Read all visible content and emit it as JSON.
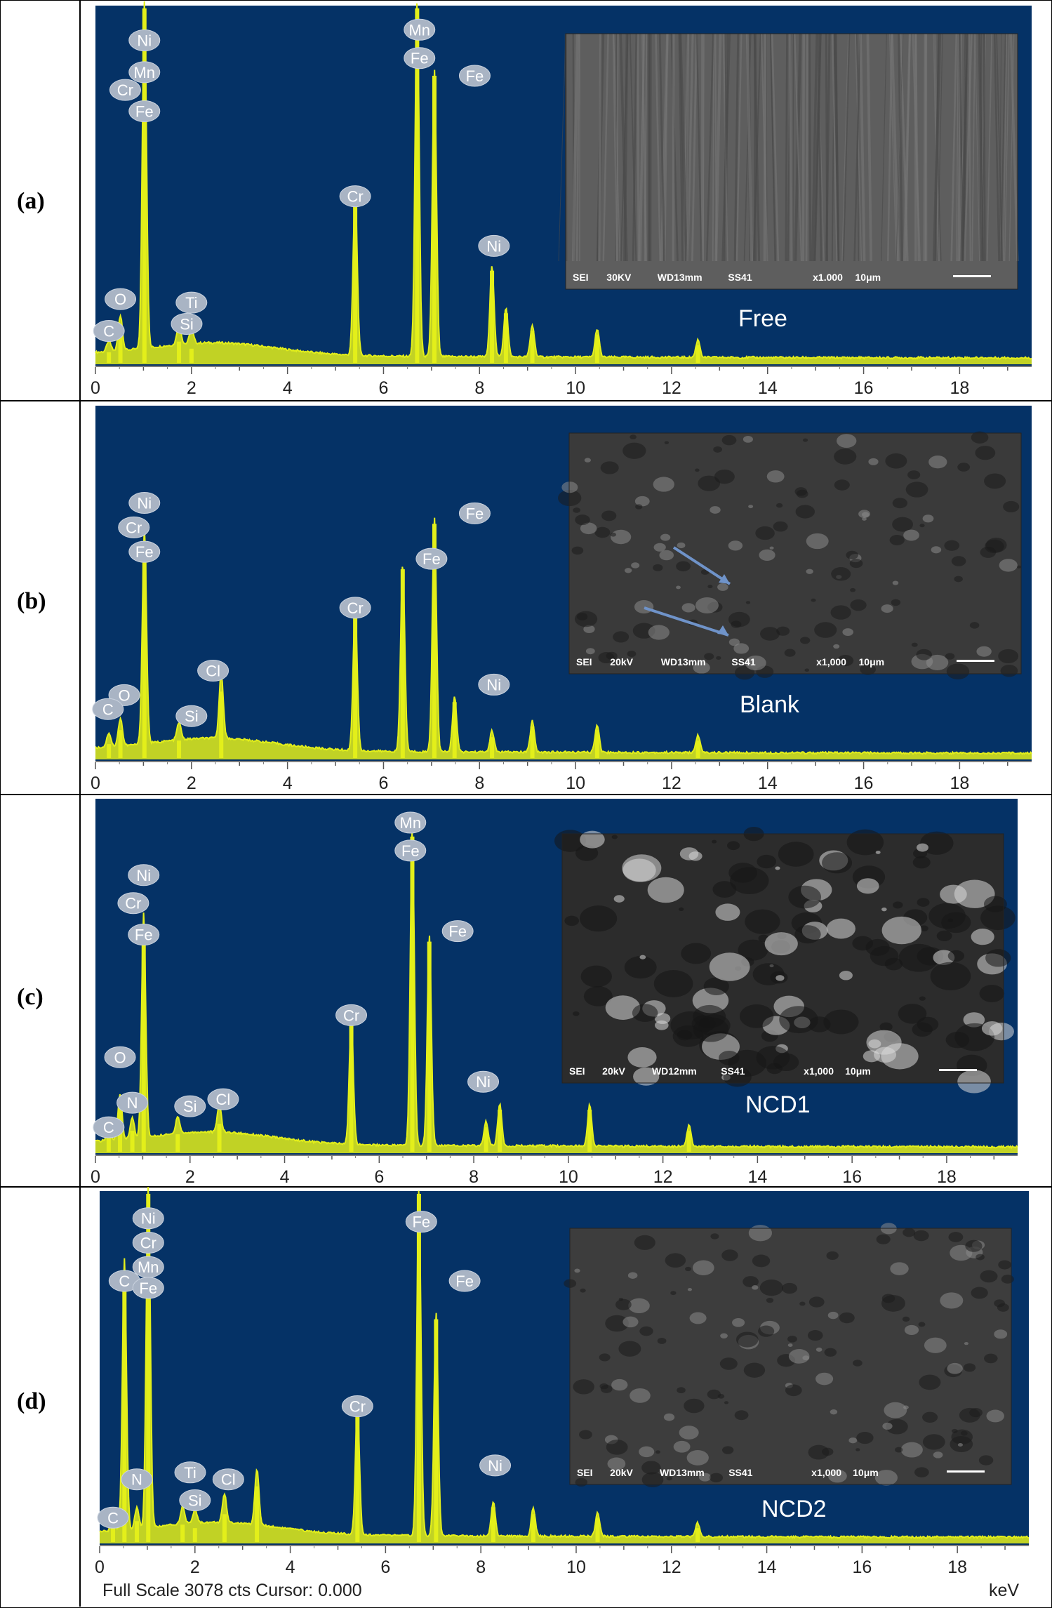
{
  "colors": {
    "background": "#053266",
    "spectrum": "#e3ef1a",
    "peak_label_bg": "#a9b4c4"
  },
  "footer": {
    "full_scale": "Full Scale 3078 cts Cursor: 0.000",
    "unit": "keV"
  },
  "chart_data": [
    {
      "type": "line",
      "panel_label": "(a)",
      "inset_title": "Free",
      "inset_info": [
        "SEI",
        "30KV",
        "WD13mm",
        "SS41",
        "x1.000",
        "10μm"
      ],
      "xlim": [
        0,
        19.5
      ],
      "x_ticks": [
        "0",
        "2",
        "4",
        "6",
        "8",
        "10",
        "12",
        "14",
        "16",
        "18"
      ],
      "peaks": [
        {
          "label": "C",
          "x": 0.28,
          "height": 0.03
        },
        {
          "label": "O",
          "x": 0.52,
          "height": 0.1
        },
        {
          "label": "Ni",
          "x": 1.02,
          "height": 1.0
        },
        {
          "label": "Si",
          "x": 1.74,
          "height": 0.06
        },
        {
          "label": "Ti",
          "x": 2.0,
          "height": 0.04
        },
        {
          "label": "Cr",
          "x": 5.41,
          "height": 0.46
        },
        {
          "label": "Mn",
          "x": 6.7,
          "height": 1.0
        },
        {
          "label": "Fe",
          "x": 7.06,
          "height": 0.81
        },
        {
          "label": "Ni",
          "x": 8.26,
          "height": 0.26
        },
        {
          "label": "",
          "x": 8.55,
          "height": 0.14
        },
        {
          "label": "",
          "x": 9.1,
          "height": 0.09
        },
        {
          "label": "",
          "x": 10.45,
          "height": 0.08
        },
        {
          "label": "",
          "x": 12.55,
          "height": 0.05
        }
      ],
      "labels": [
        {
          "text": "Ni",
          "x": 1.02,
          "level": 0.91
        },
        {
          "text": "Mn",
          "x": 1.02,
          "level": 0.82
        },
        {
          "text": "Cr",
          "x": 0.62,
          "level": 0.77
        },
        {
          "text": "Fe",
          "x": 1.02,
          "level": 0.71
        },
        {
          "text": "O",
          "x": 0.52,
          "level": 0.18
        },
        {
          "text": "C",
          "x": 0.28,
          "level": 0.09
        },
        {
          "text": "Ti",
          "x": 2.0,
          "level": 0.17
        },
        {
          "text": "Si",
          "x": 1.9,
          "level": 0.11
        },
        {
          "text": "Cr",
          "x": 5.41,
          "level": 0.47
        },
        {
          "text": "Mn",
          "x": 6.75,
          "level": 0.94
        },
        {
          "text": "Fe",
          "x": 6.75,
          "level": 0.86
        },
        {
          "text": "Fe",
          "x": 7.9,
          "level": 0.81
        },
        {
          "text": "Ni",
          "x": 8.3,
          "level": 0.33
        }
      ]
    },
    {
      "type": "line",
      "panel_label": "(b)",
      "inset_title": "Blank",
      "inset_info": [
        "SEI",
        "20kV",
        "WD13mm",
        "SS41",
        "x1,000",
        "10μm"
      ],
      "xlim": [
        0,
        19.5
      ],
      "x_ticks": [
        "0",
        "2",
        "4",
        "6",
        "8",
        "10",
        "12",
        "14",
        "16",
        "18"
      ],
      "peaks": [
        {
          "label": "C",
          "x": 0.28,
          "height": 0.04
        },
        {
          "label": "O",
          "x": 0.52,
          "height": 0.08
        },
        {
          "label": "Fe",
          "x": 1.02,
          "height": 0.62
        },
        {
          "label": "Si",
          "x": 1.74,
          "height": 0.05
        },
        {
          "label": "Cl",
          "x": 2.62,
          "height": 0.19
        },
        {
          "label": "Cr",
          "x": 5.41,
          "height": 0.41
        },
        {
          "label": "Fe",
          "x": 6.4,
          "height": 0.54
        },
        {
          "label": "Fe",
          "x": 7.06,
          "height": 0.67
        },
        {
          "label": "Ni",
          "x": 7.48,
          "height": 0.16
        },
        {
          "label": "",
          "x": 8.26,
          "height": 0.06
        },
        {
          "label": "",
          "x": 9.1,
          "height": 0.09
        },
        {
          "label": "",
          "x": 10.45,
          "height": 0.08
        },
        {
          "label": "",
          "x": 12.55,
          "height": 0.05
        }
      ],
      "labels": [
        {
          "text": "Ni",
          "x": 1.02,
          "level": 0.73
        },
        {
          "text": "Cr",
          "x": 0.8,
          "level": 0.66
        },
        {
          "text": "Fe",
          "x": 1.02,
          "level": 0.59
        },
        {
          "text": "O",
          "x": 0.6,
          "level": 0.18
        },
        {
          "text": "C",
          "x": 0.26,
          "level": 0.14
        },
        {
          "text": "Si",
          "x": 2.0,
          "level": 0.12
        },
        {
          "text": "Cl",
          "x": 2.45,
          "level": 0.25
        },
        {
          "text": "Cr",
          "x": 5.41,
          "level": 0.43
        },
        {
          "text": "Fe",
          "x": 7.0,
          "level": 0.57
        },
        {
          "text": "Fe",
          "x": 7.9,
          "level": 0.7
        },
        {
          "text": "Ni",
          "x": 8.3,
          "level": 0.21
        }
      ]
    },
    {
      "type": "line",
      "panel_label": "(c)",
      "inset_title": "NCD1",
      "inset_info": [
        "SEI",
        "20kV",
        "WD12mm",
        "SS41",
        "x1,000",
        "10μm"
      ],
      "xlim": [
        0,
        19.5
      ],
      "x_ticks": [
        "0",
        "2",
        "4",
        "6",
        "8",
        "10",
        "12",
        "14",
        "16",
        "18"
      ],
      "peaks": [
        {
          "label": "C",
          "x": 0.28,
          "height": 0.04
        },
        {
          "label": "O",
          "x": 0.52,
          "height": 0.13
        },
        {
          "label": "N",
          "x": 0.78,
          "height": 0.06
        },
        {
          "label": "Fe",
          "x": 1.02,
          "height": 0.64
        },
        {
          "label": "Si",
          "x": 1.74,
          "height": 0.05
        },
        {
          "label": "Cl",
          "x": 2.62,
          "height": 0.08
        },
        {
          "label": "Cr",
          "x": 5.41,
          "height": 0.36
        },
        {
          "label": "Mn",
          "x": 6.7,
          "height": 0.9
        },
        {
          "label": "Fe",
          "x": 7.06,
          "height": 0.6
        },
        {
          "label": "Ni",
          "x": 8.26,
          "height": 0.07
        },
        {
          "label": "",
          "x": 8.55,
          "height": 0.12
        },
        {
          "label": "",
          "x": 10.45,
          "height": 0.12
        },
        {
          "label": "",
          "x": 12.55,
          "height": 0.06
        }
      ],
      "labels": [
        {
          "text": "Ni",
          "x": 1.02,
          "level": 0.79
        },
        {
          "text": "Cr",
          "x": 0.8,
          "level": 0.71
        },
        {
          "text": "Fe",
          "x": 1.02,
          "level": 0.62
        },
        {
          "text": "O",
          "x": 0.52,
          "level": 0.27
        },
        {
          "text": "N",
          "x": 0.78,
          "level": 0.14
        },
        {
          "text": "C",
          "x": 0.28,
          "level": 0.07
        },
        {
          "text": "Si",
          "x": 2.0,
          "level": 0.13
        },
        {
          "text": "Cl",
          "x": 2.7,
          "level": 0.15
        },
        {
          "text": "Cr",
          "x": 5.41,
          "level": 0.39
        },
        {
          "text": "Mn",
          "x": 6.66,
          "level": 0.94
        },
        {
          "text": "Fe",
          "x": 6.66,
          "level": 0.86
        },
        {
          "text": "Fe",
          "x": 7.66,
          "level": 0.63
        },
        {
          "text": "Ni",
          "x": 8.2,
          "level": 0.2
        }
      ]
    },
    {
      "type": "line",
      "panel_label": "(d)",
      "inset_title": "NCD2",
      "inset_info": [
        "SEI",
        "20kV",
        "WD13mm",
        "SS41",
        "x1,000",
        "10μm"
      ],
      "xlim": [
        0,
        19.5
      ],
      "x_ticks": [
        "0",
        "2",
        "4",
        "6",
        "8",
        "10",
        "12",
        "14",
        "16",
        "18"
      ],
      "peaks": [
        {
          "label": "C",
          "x": 0.28,
          "height": 0.04
        },
        {
          "label": "O",
          "x": 0.52,
          "height": 0.78
        },
        {
          "label": "N",
          "x": 0.78,
          "height": 0.06
        },
        {
          "label": "Fe",
          "x": 1.02,
          "height": 1.0
        },
        {
          "label": "Si",
          "x": 1.74,
          "height": 0.05
        },
        {
          "label": "Ti",
          "x": 2.0,
          "height": 0.04
        },
        {
          "label": "Cl",
          "x": 2.62,
          "height": 0.08
        },
        {
          "label": "",
          "x": 3.3,
          "height": 0.16
        },
        {
          "label": "Cr",
          "x": 5.41,
          "height": 0.37
        },
        {
          "label": "Fe",
          "x": 6.7,
          "height": 1.0
        },
        {
          "label": "Fe",
          "x": 7.06,
          "height": 0.64
        },
        {
          "label": "Ni",
          "x": 8.26,
          "height": 0.1
        },
        {
          "label": "",
          "x": 9.1,
          "height": 0.08
        },
        {
          "label": "",
          "x": 10.45,
          "height": 0.07
        },
        {
          "label": "",
          "x": 12.55,
          "height": 0.04
        }
      ],
      "labels": [
        {
          "text": "Ni",
          "x": 1.02,
          "level": 0.93
        },
        {
          "text": "Cr",
          "x": 1.02,
          "level": 0.86
        },
        {
          "text": "Mn",
          "x": 1.02,
          "level": 0.79
        },
        {
          "text": "C",
          "x": 0.52,
          "level": 0.75
        },
        {
          "text": "Fe",
          "x": 1.02,
          "level": 0.73
        },
        {
          "text": "N",
          "x": 0.78,
          "level": 0.18
        },
        {
          "text": "C",
          "x": 0.28,
          "level": 0.07
        },
        {
          "text": "Ti",
          "x": 1.9,
          "level": 0.2
        },
        {
          "text": "Si",
          "x": 2.0,
          "level": 0.12
        },
        {
          "text": "Cl",
          "x": 2.7,
          "level": 0.18
        },
        {
          "text": "Cr",
          "x": 5.41,
          "level": 0.39
        },
        {
          "text": "Fe",
          "x": 6.75,
          "level": 0.92
        },
        {
          "text": "Fe",
          "x": 7.66,
          "level": 0.75
        },
        {
          "text": "Ni",
          "x": 8.3,
          "level": 0.22
        }
      ]
    }
  ]
}
